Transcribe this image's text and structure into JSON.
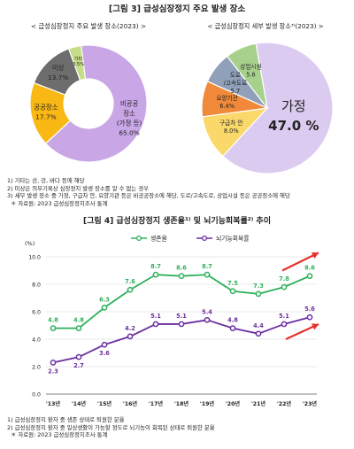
{
  "figure3": {
    "title": "[그림 3] 급성심장정지 주요 발생 장소",
    "notes": [
      "1) 기타는 산, 강, 바다 등에 해당",
      "2) 미상은 의무기록상 심장정지 발생 장소를 알 수 없는 경우",
      "3) 세부 발생 장소 중 가정, 구급차 안, 요양기관 등은 비공공장소에 해당, 도로/고속도로, 상업시설 등은 공공장소에 해당",
      "＊ 자료원: 2023 급성심장정지조사 통계"
    ]
  },
  "figure4": {
    "title": "[그림 4] 급성심장정지 생존율¹⁾ 및 뇌기능회복률²⁾ 추이",
    "notes": [
      "1) 급성심장정지 환자 중 생존 상태로 퇴원한 분율",
      "2) 급성심장정지 환자 중 일상생활이 가능할 정도로 뇌기능이 회복된 상태로 퇴원한 분율",
      "＊ 자료원: 2023 급성심장정지조사 통계"
    ]
  },
  "chart_data": [
    {
      "type": "pie",
      "variant": "donut",
      "title": "< 급성심장정지 주요 발생 장소(2023) >",
      "slices": [
        {
          "label": "비공공장소 (가정 등)",
          "label_lines": [
            "비공공",
            "장소",
            "(가정 등)"
          ],
          "value_label": "65.0%",
          "value": 65.0,
          "color": "#c9a6e6"
        },
        {
          "label": "공공장소",
          "label_lines": [
            "공공장소"
          ],
          "value_label": "17.7%",
          "value": 17.7,
          "color": "#f9b813"
        },
        {
          "label": "미상",
          "label_lines": [
            "미상"
          ],
          "value_label": "13.7%",
          "value": 13.7,
          "color": "#6d6d6d"
        },
        {
          "label": "기타",
          "label_lines": [
            "기타"
          ],
          "value_label": "3.5%",
          "value": 3.5,
          "color": "#c4dd86"
        }
      ]
    },
    {
      "type": "pie",
      "title": "< 급성심장정지 세부 발생 장소³⁾(2023) >",
      "slices": [
        {
          "label": "가정",
          "label_lines": [
            "가정"
          ],
          "value_label": "47.0 %",
          "value": 47.0,
          "color": "#dccbf0"
        },
        {
          "label": "구급차 안",
          "label_lines": [
            "구급차 안"
          ],
          "value_label": "8.0%",
          "value": 8.0,
          "color": "#fbd86a"
        },
        {
          "label": "요양기관",
          "label_lines": [
            "요양기관"
          ],
          "value_label": "6.4%",
          "value": 6.4,
          "color": "#f08a3a"
        },
        {
          "label": "도로/고속도로",
          "label_lines": [
            "도로",
            "/고속도로"
          ],
          "value_label": "5.7",
          "value": 5.7,
          "color": "#8fa0b8"
        },
        {
          "label": "상업시설",
          "label_lines": [
            "상업시설"
          ],
          "value_label": "5.6",
          "value": 5.6,
          "color": "#a7d08c"
        }
      ]
    },
    {
      "type": "line",
      "categories": [
        "'13년",
        "'14년",
        "'15년",
        "'16년",
        "'17년",
        "'18년",
        "'19년",
        "'20년",
        "'21년",
        "'22년",
        "'23년"
      ],
      "ylabel": "(%)",
      "ylim": [
        0,
        10
      ],
      "yticks": [
        "0.0",
        "2.0",
        "4.0",
        "6.0",
        "8.0",
        "10.0"
      ],
      "grid": true,
      "legend": "top",
      "series": [
        {
          "name": "생존율",
          "values": [
            4.8,
            4.8,
            6.3,
            7.6,
            8.7,
            8.6,
            8.7,
            7.5,
            7.3,
            7.8,
            8.6
          ],
          "labels": [
            "4.8",
            "4.8",
            "6.3",
            "7.6",
            "8.7",
            "8.6",
            "8.7",
            "7.5",
            "7.3",
            "7.8",
            "8.6"
          ],
          "color": "#2db05a"
        },
        {
          "name": "뇌기능회복률",
          "values": [
            2.3,
            2.7,
            3.6,
            4.2,
            5.1,
            5.1,
            5.4,
            4.8,
            4.4,
            5.1,
            5.6
          ],
          "labels": [
            "2.3",
            "2.7",
            "3.6",
            "4.2",
            "5.1",
            "5.1",
            "5.4",
            "4.8",
            "4.4",
            "5.1",
            "5.6"
          ],
          "color": "#6a2ea0"
        }
      ],
      "arrow_color": "#e8302a"
    }
  ]
}
